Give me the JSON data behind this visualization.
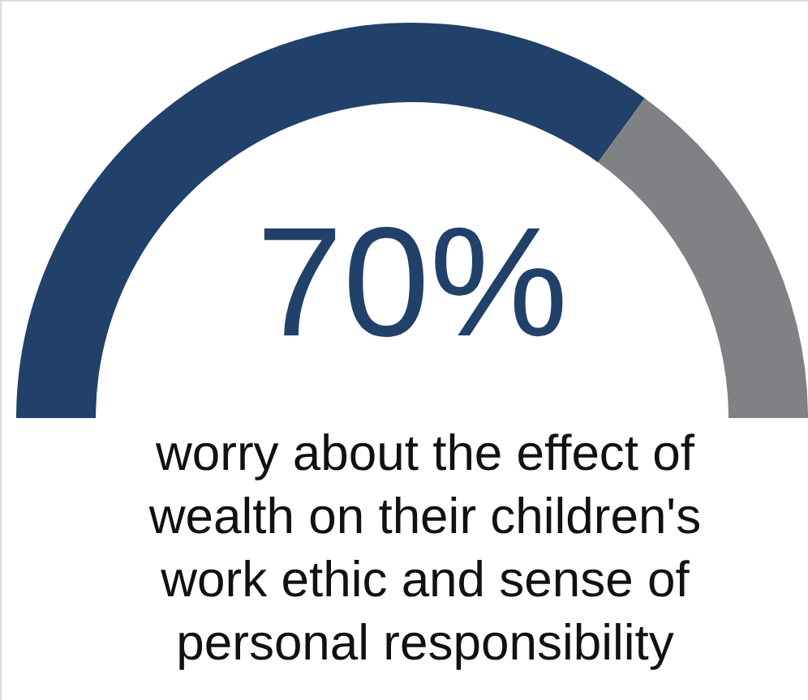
{
  "chart_data": {
    "type": "donut",
    "categories": [
      null,
      null
    ],
    "values": [
      70,
      30
    ],
    "colors": [
      "#21416a",
      "#808184"
    ],
    "value_labels": [
      "70%",
      null
    ],
    "annotations": [
      "worry about the effect of",
      "wealth on their children's",
      "work ethic and sense of",
      "personal responsibility"
    ]
  }
}
